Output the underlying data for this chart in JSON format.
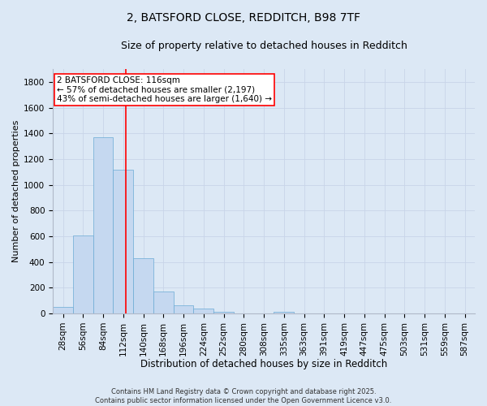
{
  "title1": "2, BATSFORD CLOSE, REDDITCH, B98 7TF",
  "title2": "Size of property relative to detached houses in Redditch",
  "xlabel": "Distribution of detached houses by size in Redditch",
  "ylabel": "Number of detached properties",
  "categories": [
    "28sqm",
    "56sqm",
    "84sqm",
    "112sqm",
    "140sqm",
    "168sqm",
    "196sqm",
    "224sqm",
    "252sqm",
    "280sqm",
    "308sqm",
    "335sqm",
    "363sqm",
    "391sqm",
    "419sqm",
    "447sqm",
    "475sqm",
    "503sqm",
    "531sqm",
    "559sqm",
    "587sqm"
  ],
  "values": [
    50,
    608,
    1370,
    1120,
    430,
    170,
    65,
    38,
    10,
    0,
    0,
    15,
    0,
    0,
    0,
    0,
    0,
    0,
    0,
    0,
    0
  ],
  "bar_color": "#c5d8f0",
  "bar_edge_color": "#6aaad4",
  "vline_color": "red",
  "annotation_box_text": "2 BATSFORD CLOSE: 116sqm\n← 57% of detached houses are smaller (2,197)\n43% of semi-detached houses are larger (1,640) →",
  "box_color": "red",
  "ylim": [
    0,
    1900
  ],
  "yticks": [
    0,
    200,
    400,
    600,
    800,
    1000,
    1200,
    1400,
    1600,
    1800
  ],
  "grid_color": "#c8d4e8",
  "bg_color": "#dce8f5",
  "footer_text": "Contains HM Land Registry data © Crown copyright and database right 2025.\nContains public sector information licensed under the Open Government Licence v3.0.",
  "title1_fontsize": 10,
  "title2_fontsize": 9,
  "xlabel_fontsize": 8.5,
  "ylabel_fontsize": 8,
  "tick_fontsize": 7.5,
  "annotation_fontsize": 7.5,
  "footer_fontsize": 6
}
